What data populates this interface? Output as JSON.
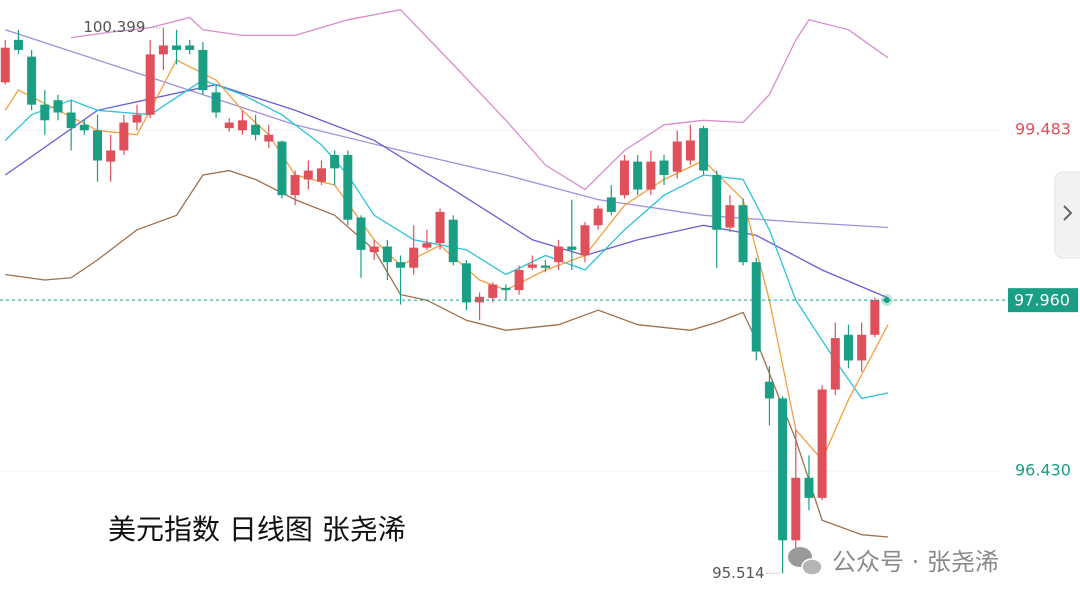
{
  "chart_data": {
    "type": "candlestick",
    "title": "美元指数 日线图 张尧浠",
    "watermark": "公众号 · 张尧浠",
    "up_color": "#e0505a",
    "down_color": "#1a9e84",
    "ylim": [
      95.231,
      100.647
    ],
    "xlim": [
      -0.4,
      75.5
    ],
    "yticks": [
      99.483,
      {
        "value": 96.43,
        "label": "96.430"
      }
    ],
    "last_price": {
      "value": 97.96,
      "label": "97.960"
    },
    "high_mark": 100.399,
    "low_mark": 95.514,
    "open": [
      99.91,
      100.29,
      100.14,
      99.71,
      99.75,
      99.64,
      99.53,
      99.48,
      99.2,
      99.3,
      99.55,
      99.62,
      100.16,
      100.24,
      100.24,
      100.2,
      99.82,
      99.5,
      99.48,
      99.53,
      99.38,
      99.38,
      98.9,
      99.04,
      99.02,
      99.26,
      99.26,
      98.7,
      98.39,
      98.44,
      98.3,
      98.25,
      98.43,
      98.47,
      98.68,
      98.29,
      97.94,
      97.98,
      98.07,
      98.05,
      98.25,
      98.27,
      98.3,
      98.44,
      98.36,
      98.63,
      98.88,
      98.9,
      99.2,
      98.95,
      99.21,
      99.11,
      99.21,
      99.5,
      99.08,
      98.61,
      98.81,
      98.3,
      97.23,
      97.08,
      95.81,
      96.37,
      96.19,
      97.16,
      97.65,
      97.42,
      97.65
    ],
    "high": [
      100.29,
      100.38,
      100.2,
      99.84,
      99.8,
      99.75,
      99.57,
      99.62,
      99.44,
      99.62,
      99.71,
      100.29,
      100.399,
      100.38,
      100.29,
      100.27,
      99.89,
      99.59,
      99.66,
      99.62,
      99.53,
      99.39,
      99.12,
      99.21,
      99.21,
      99.3,
      99.3,
      98.72,
      98.5,
      98.5,
      98.36,
      98.63,
      98.59,
      98.78,
      98.72,
      98.32,
      98.03,
      98.12,
      98.1,
      98.27,
      98.36,
      98.32,
      98.5,
      98.86,
      98.66,
      98.81,
      98.99,
      99.26,
      99.26,
      99.3,
      99.26,
      99.48,
      99.53,
      99.52,
      99.12,
      98.9,
      98.87,
      98.34,
      97.37,
      97.1,
      96.8,
      96.57,
      97.2,
      97.76,
      97.74,
      97.76,
      97.98
    ],
    "low": [
      99.89,
      100.16,
      99.66,
      99.44,
      99.57,
      99.3,
      99.44,
      99.02,
      99.02,
      99.26,
      99.48,
      99.59,
      100.02,
      100.07,
      100.16,
      99.8,
      99.59,
      99.47,
      99.44,
      99.39,
      99.32,
      98.87,
      98.81,
      98.95,
      98.99,
      98.99,
      98.63,
      98.16,
      98.32,
      98.14,
      97.92,
      98.19,
      98.41,
      98.41,
      98.27,
      97.87,
      97.78,
      97.94,
      97.96,
      98.01,
      98.23,
      98.21,
      98.23,
      98.23,
      98.3,
      98.59,
      98.72,
      98.87,
      98.9,
      98.9,
      98.99,
      99.05,
      99.17,
      99.08,
      98.25,
      98.57,
      98.27,
      97.42,
      96.84,
      95.514,
      95.74,
      96.08,
      96.17,
      97.11,
      97.35,
      97.32,
      97.63
    ],
    "close": [
      100.22,
      100.2,
      99.71,
      99.57,
      99.64,
      99.5,
      99.48,
      99.21,
      99.3,
      99.55,
      99.62,
      100.16,
      100.24,
      100.2,
      100.2,
      99.84,
      99.64,
      99.55,
      99.57,
      99.44,
      99.44,
      98.9,
      99.08,
      99.12,
      99.14,
      99.14,
      98.68,
      98.41,
      98.44,
      98.3,
      98.25,
      98.43,
      98.47,
      98.75,
      98.3,
      97.94,
      97.99,
      98.1,
      98.05,
      98.23,
      98.28,
      98.25,
      98.44,
      98.41,
      98.63,
      98.78,
      98.75,
      99.21,
      98.95,
      99.2,
      99.08,
      99.38,
      99.39,
      99.12,
      98.59,
      98.81,
      98.3,
      97.5,
      97.08,
      95.81,
      96.37,
      96.19,
      97.16,
      97.62,
      97.42,
      97.65,
      97.96
    ],
    "overlays": [
      {
        "color": "#d98ccc",
        "x": [
          5,
          8,
          11,
          14,
          15,
          18,
          22,
          26,
          30,
          34,
          38,
          41,
          44,
          47,
          50,
          53,
          56,
          58,
          60,
          61,
          64,
          67
        ],
        "values": [
          100.31,
          100.36,
          100.4,
          100.49,
          100.38,
          100.33,
          100.33,
          100.47,
          100.56,
          100.07,
          99.57,
          99.17,
          98.95,
          99.3,
          99.53,
          99.57,
          99.55,
          99.8,
          100.29,
          100.47,
          100.38,
          100.13
        ]
      },
      {
        "color": "#a0704a",
        "x": [
          0,
          3,
          5,
          7,
          10,
          13,
          15,
          17,
          19,
          22,
          25,
          28,
          30,
          32,
          35,
          38,
          42,
          45,
          48,
          52,
          54,
          56,
          57,
          60,
          62,
          65,
          67
        ],
        "values": [
          98.19,
          98.14,
          98.16,
          98.32,
          98.59,
          98.72,
          99.08,
          99.12,
          99.04,
          98.86,
          98.72,
          98.41,
          98.01,
          97.96,
          97.78,
          97.69,
          97.74,
          97.87,
          97.74,
          97.69,
          97.76,
          97.85,
          97.6,
          96.71,
          95.99,
          95.86,
          95.84
        ]
      },
      {
        "color": "#a58fd9",
        "x": [
          0,
          7,
          15,
          22,
          30,
          38,
          45,
          53,
          60,
          67
        ],
        "values": [
          100.38,
          100.11,
          99.8,
          99.53,
          99.3,
          99.08,
          98.86,
          98.72,
          98.66,
          98.61
        ]
      },
      {
        "color": "#6a5fd0",
        "x": [
          0,
          7,
          16,
          22,
          28,
          34,
          40,
          44,
          48,
          53,
          57,
          62,
          67
        ],
        "values": [
          99.08,
          99.66,
          99.89,
          99.66,
          99.39,
          98.95,
          98.5,
          98.36,
          98.5,
          98.63,
          98.54,
          98.23,
          97.98
        ]
      },
      {
        "color": "#2cc3d8",
        "x": [
          0,
          2,
          5,
          7,
          11,
          15,
          18,
          21,
          24,
          26,
          28,
          31,
          35,
          38,
          41,
          44,
          47,
          50,
          53,
          56,
          58,
          60,
          63,
          65,
          67
        ],
        "values": [
          99.39,
          99.62,
          99.75,
          99.66,
          99.62,
          99.93,
          99.8,
          99.62,
          99.35,
          99.08,
          98.72,
          98.5,
          98.41,
          98.19,
          98.36,
          98.23,
          98.59,
          98.9,
          99.08,
          99.04,
          98.59,
          97.96,
          97.42,
          97.08,
          97.13
        ]
      },
      {
        "color": "#f0a040",
        "x": [
          0,
          1,
          4,
          7,
          10,
          11,
          13,
          16,
          18,
          20,
          22,
          25,
          28,
          30,
          33,
          36,
          38,
          41,
          44,
          47,
          50,
          53,
          56,
          58,
          60,
          62,
          64,
          67
        ],
        "values": [
          99.66,
          99.84,
          99.66,
          99.48,
          99.44,
          99.66,
          100.11,
          99.93,
          99.66,
          99.44,
          99.08,
          98.99,
          98.5,
          98.27,
          98.45,
          98.14,
          98.05,
          98.23,
          98.36,
          98.81,
          99.04,
          99.21,
          98.86,
          97.96,
          96.8,
          96.53,
          97.07,
          97.74
        ]
      }
    ]
  }
}
